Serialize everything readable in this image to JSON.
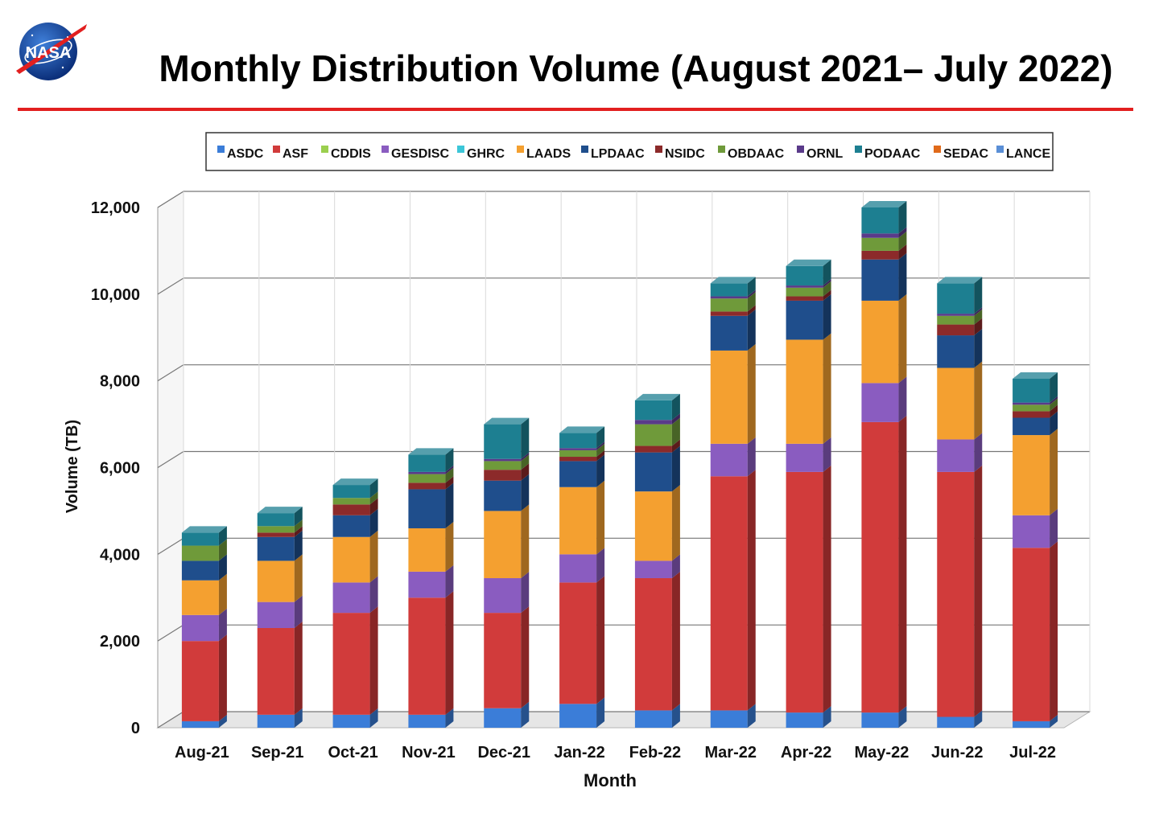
{
  "header": {
    "title": "Monthly Distribution Volume (August 2021– July 2022)",
    "logo_text": "NASA"
  },
  "chart_data": {
    "type": "bar",
    "stacked": true,
    "xlabel": "Month",
    "ylabel": "Volume (TB)",
    "ylim": [
      0,
      12000
    ],
    "yticks": [
      0,
      2000,
      4000,
      6000,
      8000,
      10000,
      12000
    ],
    "grid": true,
    "legend_position": "top",
    "categories": [
      "Aug-21",
      "Sep-21",
      "Oct-21",
      "Nov-21",
      "Dec-21",
      "Jan-22",
      "Feb-22",
      "Mar-22",
      "Apr-22",
      "May-22",
      "Jun-22",
      "Jul-22"
    ],
    "series": [
      {
        "name": "ASDC",
        "color": "#3b7dd8",
        "values": [
          150,
          300,
          300,
          300,
          450,
          550,
          400,
          400,
          350,
          350,
          250,
          150
        ]
      },
      {
        "name": "ASF",
        "color": "#d13b3b",
        "values": [
          1850,
          2000,
          2350,
          2700,
          2200,
          2800,
          3050,
          5400,
          5550,
          6700,
          5650,
          4000
        ]
      },
      {
        "name": "CDDIS",
        "color": "#9bcf4e",
        "values": [
          0,
          0,
          0,
          0,
          0,
          0,
          0,
          0,
          0,
          0,
          0,
          0
        ]
      },
      {
        "name": "GESDISC",
        "color": "#8a5cc0",
        "values": [
          600,
          600,
          700,
          600,
          800,
          650,
          400,
          750,
          650,
          900,
          750,
          750
        ]
      },
      {
        "name": "GHRC",
        "color": "#3cc6d8",
        "values": [
          0,
          0,
          0,
          0,
          0,
          0,
          0,
          0,
          0,
          0,
          0,
          0
        ]
      },
      {
        "name": "LAADS",
        "color": "#f4a030",
        "values": [
          800,
          950,
          1050,
          1000,
          1550,
          1550,
          1600,
          2150,
          2400,
          1900,
          1650,
          1850
        ]
      },
      {
        "name": "LPDAAC",
        "color": "#1f4e8c",
        "values": [
          450,
          550,
          500,
          900,
          700,
          600,
          900,
          800,
          900,
          950,
          750,
          400
        ]
      },
      {
        "name": "NSIDC",
        "color": "#8c2a2a",
        "values": [
          0,
          100,
          250,
          150,
          250,
          100,
          150,
          100,
          100,
          200,
          250,
          150
        ]
      },
      {
        "name": "OBDAAC",
        "color": "#6f9a3a",
        "values": [
          350,
          150,
          150,
          200,
          200,
          150,
          500,
          300,
          200,
          300,
          200,
          150
        ]
      },
      {
        "name": "ORNL",
        "color": "#5a3a8a",
        "values": [
          0,
          0,
          0,
          50,
          50,
          50,
          100,
          50,
          50,
          100,
          50,
          50
        ]
      },
      {
        "name": "PODAAC",
        "color": "#1d7f91",
        "values": [
          300,
          300,
          300,
          400,
          800,
          350,
          450,
          300,
          450,
          600,
          700,
          550
        ]
      },
      {
        "name": "SEDAC",
        "color": "#e06a1a",
        "values": [
          0,
          0,
          0,
          0,
          0,
          0,
          0,
          0,
          0,
          0,
          0,
          0
        ]
      },
      {
        "name": "LANCE",
        "color": "#5a8fd6",
        "values": [
          0,
          0,
          0,
          0,
          0,
          0,
          0,
          0,
          0,
          0,
          0,
          0
        ]
      }
    ]
  }
}
